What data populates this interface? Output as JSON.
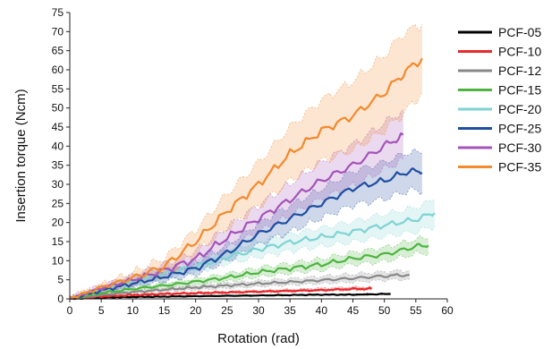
{
  "chart_data": {
    "type": "line",
    "xlabel": "Rotation (rad)",
    "ylabel": "Insertion torque (Ncm)",
    "xlim": [
      0,
      60
    ],
    "ylim": [
      0,
      75
    ],
    "x_ticks": [
      0,
      5,
      10,
      15,
      20,
      25,
      30,
      35,
      40,
      45,
      50,
      55,
      60
    ],
    "y_ticks": [
      0,
      5,
      10,
      15,
      20,
      25,
      30,
      35,
      40,
      45,
      50,
      55,
      60,
      65,
      70,
      75
    ],
    "legend_position": "right",
    "grid": false,
    "series": [
      {
        "name": "PCF-05",
        "color": "#000000",
        "points": [
          [
            0,
            0
          ],
          [
            3,
            0.2
          ],
          [
            6,
            0.4
          ],
          [
            10,
            0.5
          ],
          [
            15,
            0.6
          ],
          [
            20,
            0.7
          ],
          [
            25,
            0.8
          ],
          [
            30,
            0.9
          ],
          [
            35,
            1.0
          ],
          [
            40,
            1.1
          ],
          [
            45,
            1.1
          ],
          [
            51,
            1.3
          ]
        ],
        "band": [
          [
            0,
            0.1
          ],
          [
            3,
            0.3
          ],
          [
            6,
            0.5
          ],
          [
            10,
            0.6
          ],
          [
            15,
            0.7
          ],
          [
            20,
            0.8
          ],
          [
            25,
            0.9
          ],
          [
            30,
            1.0
          ],
          [
            35,
            1.1
          ],
          [
            40,
            1.2
          ],
          [
            45,
            1.3
          ],
          [
            51,
            1.5
          ]
        ],
        "band_lower": [
          [
            0,
            0
          ],
          [
            3,
            0.1
          ],
          [
            6,
            0.3
          ],
          [
            10,
            0.4
          ],
          [
            15,
            0.5
          ],
          [
            20,
            0.6
          ],
          [
            25,
            0.7
          ],
          [
            30,
            0.8
          ],
          [
            35,
            0.9
          ],
          [
            40,
            1.0
          ],
          [
            45,
            1.0
          ],
          [
            51,
            1.1
          ]
        ]
      },
      {
        "name": "PCF-10",
        "color": "#e8282b",
        "points": [
          [
            0,
            0
          ],
          [
            5,
            0.6
          ],
          [
            10,
            1.0
          ],
          [
            15,
            1.3
          ],
          [
            20,
            1.5
          ],
          [
            25,
            1.7
          ],
          [
            30,
            1.9
          ],
          [
            35,
            2.1
          ],
          [
            40,
            2.3
          ],
          [
            45,
            2.6
          ],
          [
            48,
            2.7
          ]
        ],
        "band": [
          [
            0,
            0.2
          ],
          [
            5,
            0.8
          ],
          [
            10,
            1.3
          ],
          [
            15,
            1.6
          ],
          [
            20,
            1.8
          ],
          [
            25,
            2.0
          ],
          [
            30,
            2.2
          ],
          [
            35,
            2.5
          ],
          [
            40,
            2.8
          ],
          [
            45,
            3.1
          ],
          [
            48,
            3.2
          ]
        ],
        "band_lower": [
          [
            0,
            0
          ],
          [
            5,
            0.4
          ],
          [
            10,
            0.8
          ],
          [
            15,
            1.0
          ],
          [
            20,
            1.2
          ],
          [
            25,
            1.4
          ],
          [
            30,
            1.6
          ],
          [
            35,
            1.8
          ],
          [
            40,
            2.0
          ],
          [
            45,
            2.2
          ],
          [
            48,
            2.3
          ]
        ]
      },
      {
        "name": "PCF-12",
        "color": "#888888",
        "points": [
          [
            0,
            0
          ],
          [
            5,
            1.0
          ],
          [
            10,
            1.8
          ],
          [
            15,
            2.4
          ],
          [
            20,
            3.0
          ],
          [
            25,
            3.5
          ],
          [
            30,
            4.0
          ],
          [
            35,
            4.4
          ],
          [
            40,
            4.9
          ],
          [
            45,
            5.4
          ],
          [
            50,
            6.0
          ],
          [
            54,
            6.3
          ]
        ],
        "band": [
          [
            0,
            0.3
          ],
          [
            5,
            1.3
          ],
          [
            10,
            2.2
          ],
          [
            15,
            2.9
          ],
          [
            20,
            3.6
          ],
          [
            25,
            4.2
          ],
          [
            30,
            4.8
          ],
          [
            35,
            5.3
          ],
          [
            40,
            5.9
          ],
          [
            45,
            6.5
          ],
          [
            50,
            7.1
          ],
          [
            54,
            7.5
          ]
        ],
        "band_lower": [
          [
            0,
            0
          ],
          [
            5,
            0.7
          ],
          [
            10,
            1.4
          ],
          [
            15,
            1.9
          ],
          [
            20,
            2.4
          ],
          [
            25,
            2.8
          ],
          [
            30,
            3.2
          ],
          [
            35,
            3.6
          ],
          [
            40,
            4.0
          ],
          [
            45,
            4.4
          ],
          [
            50,
            4.9
          ],
          [
            54,
            5.2
          ]
        ]
      },
      {
        "name": "PCF-15",
        "color": "#4db53f",
        "points": [
          [
            0,
            0
          ],
          [
            5,
            1.5
          ],
          [
            10,
            2.6
          ],
          [
            15,
            3.5
          ],
          [
            20,
            4.5
          ],
          [
            25,
            5.6
          ],
          [
            30,
            7.0
          ],
          [
            35,
            8.0
          ],
          [
            40,
            9.0
          ],
          [
            45,
            10.6
          ],
          [
            50,
            11.6
          ],
          [
            55,
            13.7
          ],
          [
            57,
            14.0
          ]
        ],
        "band": [
          [
            0,
            0.4
          ],
          [
            5,
            1.9
          ],
          [
            10,
            3.1
          ],
          [
            15,
            4.2
          ],
          [
            20,
            5.3
          ],
          [
            25,
            6.6
          ],
          [
            30,
            8.2
          ],
          [
            35,
            9.3
          ],
          [
            40,
            10.5
          ],
          [
            45,
            12.2
          ],
          [
            50,
            13.4
          ],
          [
            55,
            15.6
          ],
          [
            57,
            16.0
          ]
        ],
        "band_lower": [
          [
            0,
            0
          ],
          [
            5,
            1.1
          ],
          [
            10,
            2.1
          ],
          [
            15,
            2.8
          ],
          [
            20,
            3.7
          ],
          [
            25,
            4.6
          ],
          [
            30,
            5.8
          ],
          [
            35,
            6.7
          ],
          [
            40,
            7.5
          ],
          [
            45,
            9.0
          ],
          [
            50,
            9.8
          ],
          [
            55,
            11.8
          ],
          [
            57,
            12.0
          ]
        ]
      },
      {
        "name": "PCF-20",
        "color": "#7fd3d3",
        "points": [
          [
            0,
            0
          ],
          [
            5,
            2.5
          ],
          [
            10,
            4.5
          ],
          [
            15,
            6.5
          ],
          [
            20,
            8.5
          ],
          [
            25,
            11.0
          ],
          [
            30,
            13.0
          ],
          [
            35,
            14.8
          ],
          [
            40,
            16.2
          ],
          [
            45,
            17.6
          ],
          [
            50,
            19.3
          ],
          [
            55,
            20.8
          ],
          [
            58,
            22.5
          ]
        ],
        "band": [
          [
            0,
            0.5
          ],
          [
            5,
            3.2
          ],
          [
            10,
            5.4
          ],
          [
            15,
            7.6
          ],
          [
            20,
            9.9
          ],
          [
            25,
            12.7
          ],
          [
            30,
            15.0
          ],
          [
            35,
            17.0
          ],
          [
            40,
            18.6
          ],
          [
            45,
            20.3
          ],
          [
            50,
            22.2
          ],
          [
            55,
            24.0
          ],
          [
            58,
            26.0
          ]
        ],
        "band_lower": [
          [
            0,
            0
          ],
          [
            5,
            1.8
          ],
          [
            10,
            3.6
          ],
          [
            15,
            5.4
          ],
          [
            20,
            7.1
          ],
          [
            25,
            9.3
          ],
          [
            30,
            11.0
          ],
          [
            35,
            12.6
          ],
          [
            40,
            13.8
          ],
          [
            45,
            14.9
          ],
          [
            50,
            16.4
          ],
          [
            55,
            17.6
          ],
          [
            58,
            19.0
          ]
        ]
      },
      {
        "name": "PCF-25",
        "color": "#1f4ea1",
        "points": [
          [
            0,
            0
          ],
          [
            5,
            2.2
          ],
          [
            10,
            4.0
          ],
          [
            15,
            5.8
          ],
          [
            20,
            8.0
          ],
          [
            25,
            12.0
          ],
          [
            30,
            17.0
          ],
          [
            35,
            21.0
          ],
          [
            40,
            25.0
          ],
          [
            45,
            29.0
          ],
          [
            50,
            31.0
          ],
          [
            54,
            33.5
          ],
          [
            56,
            33.0
          ]
        ],
        "band": [
          [
            0,
            0.5
          ],
          [
            5,
            2.9
          ],
          [
            10,
            5.0
          ],
          [
            15,
            7.0
          ],
          [
            20,
            9.6
          ],
          [
            25,
            14.1
          ],
          [
            30,
            19.8
          ],
          [
            35,
            24.4
          ],
          [
            40,
            28.8
          ],
          [
            45,
            33.4
          ],
          [
            50,
            35.8
          ],
          [
            54,
            38.5
          ],
          [
            56,
            38.0
          ]
        ],
        "band_lower": [
          [
            0,
            0
          ],
          [
            5,
            1.5
          ],
          [
            10,
            3.0
          ],
          [
            15,
            4.6
          ],
          [
            20,
            6.4
          ],
          [
            25,
            9.9
          ],
          [
            30,
            14.2
          ],
          [
            35,
            17.6
          ],
          [
            40,
            21.2
          ],
          [
            45,
            24.6
          ],
          [
            50,
            26.2
          ],
          [
            54,
            28.5
          ],
          [
            56,
            28.0
          ]
        ]
      },
      {
        "name": "PCF-30",
        "color": "#a354b8",
        "points": [
          [
            0,
            0
          ],
          [
            5,
            2.8
          ],
          [
            10,
            5.0
          ],
          [
            15,
            7.5
          ],
          [
            20,
            10.5
          ],
          [
            25,
            16.0
          ],
          [
            30,
            21.0
          ],
          [
            35,
            26.0
          ],
          [
            40,
            31.0
          ],
          [
            45,
            35.0
          ],
          [
            50,
            40.0
          ],
          [
            53,
            43.0
          ]
        ],
        "band": [
          [
            0,
            0.6
          ],
          [
            5,
            3.6
          ],
          [
            10,
            6.2
          ],
          [
            15,
            9.0
          ],
          [
            20,
            12.5
          ],
          [
            25,
            18.8
          ],
          [
            30,
            24.5
          ],
          [
            35,
            30.2
          ],
          [
            40,
            35.8
          ],
          [
            45,
            40.4
          ],
          [
            50,
            46.0
          ],
          [
            53,
            49.5
          ]
        ],
        "band_lower": [
          [
            0,
            0
          ],
          [
            5,
            2.0
          ],
          [
            10,
            3.8
          ],
          [
            15,
            6.0
          ],
          [
            20,
            8.5
          ],
          [
            25,
            13.2
          ],
          [
            30,
            17.5
          ],
          [
            35,
            21.8
          ],
          [
            40,
            26.2
          ],
          [
            45,
            29.6
          ],
          [
            50,
            34.0
          ],
          [
            53,
            36.5
          ]
        ]
      },
      {
        "name": "PCF-35",
        "color": "#f28a2e",
        "points": [
          [
            0,
            0
          ],
          [
            5,
            3.0
          ],
          [
            10,
            5.5
          ],
          [
            15,
            8.5
          ],
          [
            20,
            15.0
          ],
          [
            25,
            23.0
          ],
          [
            30,
            30.0
          ],
          [
            35,
            38.0
          ],
          [
            40,
            44.0
          ],
          [
            45,
            48.0
          ],
          [
            50,
            54.0
          ],
          [
            53,
            59.0
          ],
          [
            56,
            63.0
          ]
        ],
        "band": [
          [
            0,
            0.6
          ],
          [
            5,
            3.8
          ],
          [
            10,
            6.9
          ],
          [
            15,
            10.6
          ],
          [
            20,
            18.0
          ],
          [
            25,
            27.5
          ],
          [
            30,
            35.7
          ],
          [
            35,
            45.0
          ],
          [
            40,
            52.0
          ],
          [
            45,
            57.0
          ],
          [
            50,
            63.8
          ],
          [
            53,
            69.5
          ],
          [
            56,
            72.0
          ]
        ],
        "band_lower": [
          [
            0,
            0
          ],
          [
            5,
            2.2
          ],
          [
            10,
            4.1
          ],
          [
            15,
            6.4
          ],
          [
            20,
            12.0
          ],
          [
            25,
            18.5
          ],
          [
            30,
            24.3
          ],
          [
            35,
            31.0
          ],
          [
            40,
            36.0
          ],
          [
            45,
            39.0
          ],
          [
            50,
            44.2
          ],
          [
            53,
            48.5
          ],
          [
            56,
            54.0
          ]
        ]
      }
    ]
  }
}
